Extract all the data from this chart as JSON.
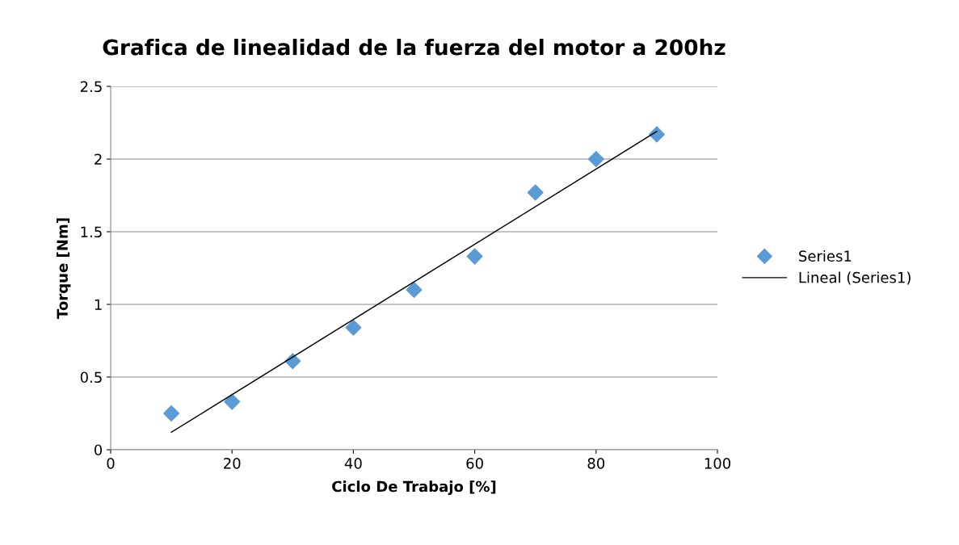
{
  "chart_data": {
    "type": "scatter",
    "title": "Grafica de linealidad de la fuerza del motor a 200hz",
    "xlabel": "Ciclo De Trabajo [%]",
    "ylabel": "Torque [Nm]",
    "x": [
      10,
      20,
      30,
      40,
      50,
      60,
      70,
      80,
      90
    ],
    "series": [
      {
        "name": "Series1",
        "color": "#5b9bd5",
        "marker": "diamond",
        "values": [
          0.25,
          0.33,
          0.61,
          0.84,
          1.1,
          1.33,
          1.77,
          2.0,
          2.17
        ]
      },
      {
        "name": "Lineal (Series1)",
        "type": "line",
        "color": "#000000",
        "marker": "none",
        "line_style": "solid",
        "x": [
          10,
          90
        ],
        "values": [
          0.12,
          2.19
        ]
      }
    ],
    "xlim": [
      0,
      100
    ],
    "xticks": [
      0,
      20,
      40,
      60,
      80,
      100
    ],
    "ylim": [
      0,
      2.5
    ],
    "yticks": [
      0,
      0.5,
      1,
      1.5,
      2,
      2.5
    ],
    "grid": "y",
    "legend": "right"
  }
}
